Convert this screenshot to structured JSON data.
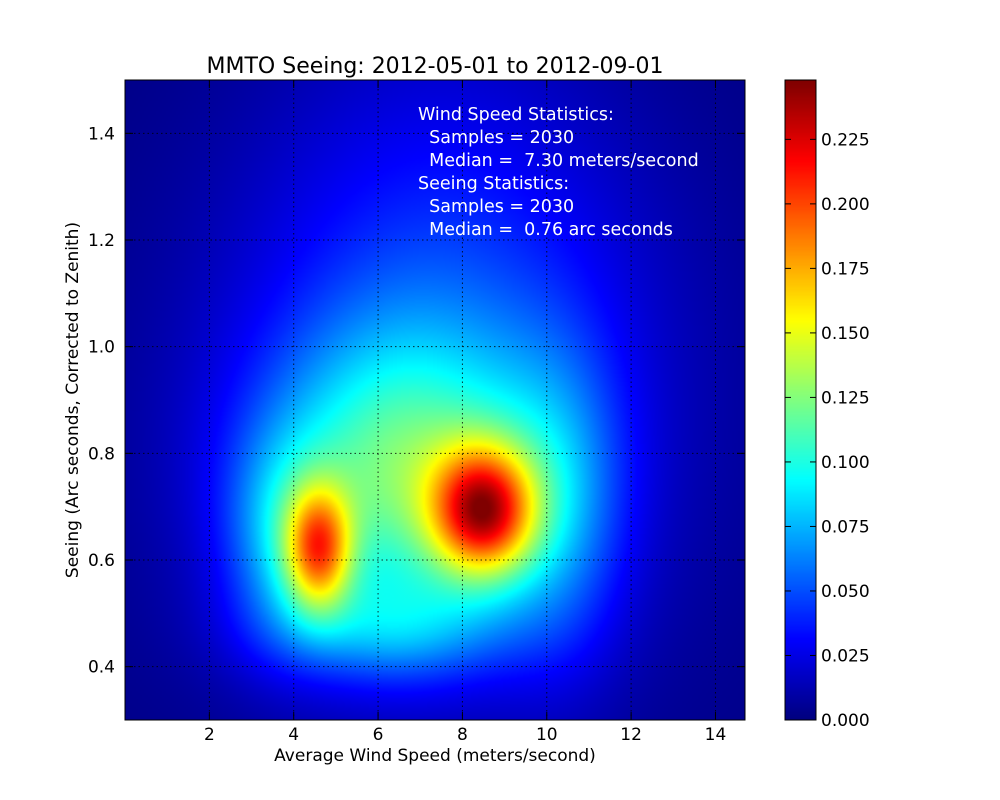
{
  "chart_data": {
    "type": "heatmap",
    "title": "MMTO Seeing: 2012-05-01 to 2012-09-01",
    "xlabel": "Average Wind Speed (meters/second)",
    "ylabel": "Seeing (Arc seconds, Corrected to Zenith)",
    "xlim": [
      0,
      14.7
    ],
    "ylim": [
      0.3,
      1.5
    ],
    "xticks": [
      2,
      4,
      6,
      8,
      10,
      12,
      14
    ],
    "yticks": [
      0.4,
      0.6,
      0.8,
      1.0,
      1.2,
      1.4
    ],
    "xtick_labels": [
      "2",
      "4",
      "6",
      "8",
      "10",
      "12",
      "14"
    ],
    "ytick_labels": [
      "0.4",
      "0.6",
      "0.8",
      "1.0",
      "1.2",
      "1.4"
    ],
    "grid": true,
    "colormap": "jet",
    "colorbar": {
      "range": [
        0.0,
        0.248
      ],
      "ticks": [
        0.0,
        0.025,
        0.05,
        0.075,
        0.1,
        0.125,
        0.15,
        0.175,
        0.2,
        0.225
      ],
      "tick_labels": [
        "0.000",
        "0.025",
        "0.050",
        "0.075",
        "0.100",
        "0.125",
        "0.150",
        "0.175",
        "0.200",
        "0.225"
      ]
    },
    "density_peaks": [
      {
        "x": 8.5,
        "y": 0.69,
        "value": 0.248
      },
      {
        "x": 4.6,
        "y": 0.62,
        "value": 0.215
      }
    ],
    "annotation_lines": [
      "Wind Speed Statistics:",
      "  Samples = 2030",
      "  Median =  7.30 meters/second",
      "Seeing Statistics:",
      "  Samples = 2030",
      "  Median =  0.76 arc seconds"
    ]
  }
}
